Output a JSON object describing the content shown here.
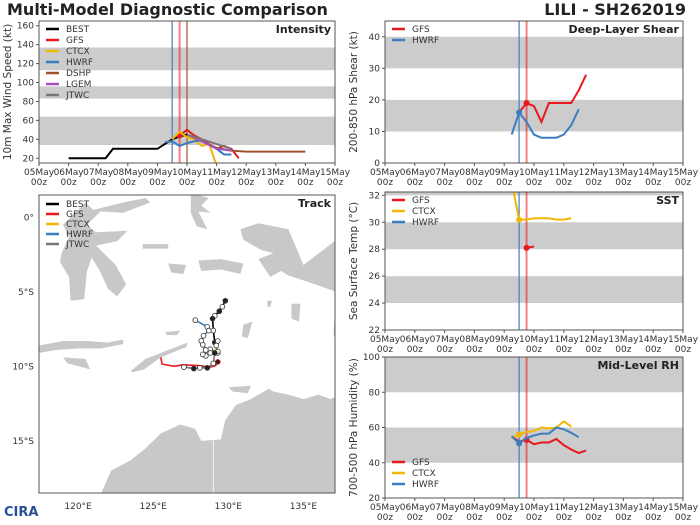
{
  "header": {
    "title": "Multi-Model Diagnostic Comparison",
    "storm": "LILI - SH262019"
  },
  "logo": "CIRA",
  "colors": {
    "BEST": "#000000",
    "GFS": "#e8191e",
    "CTCX": "#f2b705",
    "HWRF": "#3a7dc0",
    "DSHP": "#a0522d",
    "LGEM": "#a64fc4",
    "JTWC": "#777777",
    "band": "#cccccc",
    "land": "#c8c8c8"
  },
  "x_ticks": [
    {
      "date": "05May",
      "hour": "00z"
    },
    {
      "date": "06May",
      "hour": "00z"
    },
    {
      "date": "07May",
      "hour": "00z"
    },
    {
      "date": "08May",
      "hour": "00z"
    },
    {
      "date": "09May",
      "hour": "00z"
    },
    {
      "date": "10May",
      "hour": "00z"
    },
    {
      "date": "11May",
      "hour": "00z"
    },
    {
      "date": "12May",
      "hour": "00z"
    },
    {
      "date": "13May",
      "hour": "00z"
    },
    {
      "date": "14May",
      "hour": "00z"
    },
    {
      "date": "15May",
      "hour": "00z"
    }
  ],
  "chart_data": [
    {
      "type": "line",
      "title": "Intensity",
      "ylabel": "10m Max Wind Speed (kt)",
      "xlim": [
        "05May 00z",
        "15May 00z"
      ],
      "ylim": [
        15,
        165
      ],
      "yticks": [
        20,
        40,
        60,
        80,
        100,
        120,
        140,
        160
      ],
      "bands": [
        [
          34,
          64
        ],
        [
          83,
          96
        ],
        [
          113,
          137
        ]
      ],
      "legend": "top-left",
      "vlines": [
        {
          "x": "09May 12z",
          "model": "HWRF"
        },
        {
          "x": "09May 18z",
          "model": "GFS"
        },
        {
          "x": "10May 00z",
          "model": "DSHP"
        }
      ],
      "series": [
        {
          "name": "BEST",
          "x": [
            "06May 00z",
            "06May 12z",
            "07May 00z",
            "07May 06z",
            "07May 12z",
            "08May 00z",
            "08May 12z",
            "09May 00z",
            "09May 06z",
            "09May 12z",
            "09May 18z",
            "10May 00z"
          ],
          "y": [
            20,
            20,
            20,
            20,
            30,
            30,
            30,
            30,
            35,
            40,
            43,
            45
          ]
        },
        {
          "name": "GFS",
          "x": [
            "09May 18z",
            "10May 00z",
            "10May 06z",
            "10May 12z",
            "10May 18z",
            "11May 00z",
            "11May 06z",
            "11May 12z",
            "11May 18z"
          ],
          "y": [
            44,
            50,
            44,
            40,
            35,
            30,
            33,
            30,
            20
          ],
          "marker": "09May 18z"
        },
        {
          "name": "CTCX",
          "x": [
            "09May 12z",
            "09May 18z",
            "10May 00z",
            "10May 06z",
            "10May 12z",
            "10May 18z",
            "11May 00z"
          ],
          "y": [
            40,
            48,
            42,
            40,
            33,
            35,
            12
          ]
        },
        {
          "name": "HWRF",
          "x": [
            "09May 06z",
            "09May 12z",
            "09May 18z",
            "10May 00z",
            "10May 06z",
            "10May 12z",
            "10May 18z",
            "11May 00z",
            "11May 06z",
            "11May 12z"
          ],
          "y": [
            37,
            38,
            33,
            36,
            38,
            39,
            34,
            30,
            24,
            24
          ]
        },
        {
          "name": "DSHP",
          "x": [
            "10May 00z",
            "10May 12z",
            "11May 00z",
            "11May 12z",
            "12May 00z",
            "13May 00z",
            "14May 00z"
          ],
          "y": [
            45,
            38,
            31,
            28,
            27,
            27,
            27
          ]
        },
        {
          "name": "LGEM",
          "x": [
            "10May 00z",
            "10May 12z",
            "11May 00z",
            "11May 12z"
          ],
          "y": [
            45,
            38,
            30,
            28
          ]
        },
        {
          "name": "JTWC",
          "x": [
            "10May 00z",
            "10May 12z",
            "11May 00z",
            "11May 12z"
          ],
          "y": [
            45,
            40,
            35,
            30
          ]
        }
      ]
    },
    {
      "type": "line",
      "title": "Deep-Layer Shear",
      "ylabel": "200-850 hPa Shear (kt)",
      "xlim": [
        "05May 00z",
        "15May 00z"
      ],
      "ylim": [
        0,
        45
      ],
      "yticks": [
        0,
        10,
        20,
        30,
        40
      ],
      "bands": [
        [
          10,
          20
        ],
        [
          30,
          40
        ]
      ],
      "legend": "top-left",
      "vlines": [
        {
          "x": "09May 12z",
          "model": "HWRF"
        },
        {
          "x": "09May 18z",
          "model": "GFS"
        }
      ],
      "series": [
        {
          "name": "GFS",
          "x": [
            "09May 12z",
            "09May 18z",
            "10May 00z",
            "10May 06z",
            "10May 12z",
            "10May 18z",
            "11May 00z",
            "11May 06z",
            "11May 12z",
            "11May 18z"
          ],
          "y": [
            16,
            19,
            18,
            13,
            19,
            19,
            19,
            19,
            23,
            28
          ],
          "marker": "09May 18z"
        },
        {
          "name": "HWRF",
          "x": [
            "09May 06z",
            "09May 12z",
            "09May 18z",
            "10May 00z",
            "10May 06z",
            "10May 12z",
            "10May 18z",
            "11May 00z",
            "11May 06z",
            "11May 12z"
          ],
          "y": [
            9,
            16,
            13,
            9,
            8,
            8,
            8,
            9,
            12,
            17
          ],
          "marker": "09May 12z"
        }
      ]
    },
    {
      "type": "line",
      "title": "SST",
      "ylabel": "Sea Surface Temp (°C)",
      "xlim": [
        "05May 00z",
        "15May 00z"
      ],
      "ylim": [
        22,
        32.25
      ],
      "yticks": [
        22,
        24,
        26,
        28,
        30,
        32
      ],
      "bands": [
        [
          24,
          26
        ],
        [
          28,
          30
        ],
        [
          32,
          34
        ]
      ],
      "legend": "top-left",
      "vlines": [
        {
          "x": "09May 12z",
          "model": "HWRF"
        },
        {
          "x": "09May 18z",
          "model": "GFS"
        }
      ],
      "series": [
        {
          "name": "GFS",
          "x": [
            "09May 18z",
            "10May 00z"
          ],
          "y": [
            28.1,
            28.2
          ],
          "marker": "09May 18z"
        },
        {
          "name": "CTCX",
          "x": [
            "09May 06z",
            "09May 12z",
            "09May 18z",
            "10May 00z",
            "10May 06z",
            "10May 12z",
            "10May 18z",
            "11May 00z",
            "11May 06z"
          ],
          "y": [
            33,
            30.2,
            30.2,
            30.3,
            30.3,
            30.3,
            30.2,
            30.2,
            30.3
          ],
          "marker": "09May 12z"
        },
        {
          "name": "HWRF",
          "x": [],
          "y": []
        }
      ]
    },
    {
      "type": "line",
      "title": "Mid-Level RH",
      "ylabel": "700-500 hPa Humidity (%)",
      "xlim": [
        "05May 00z",
        "15May 00z"
      ],
      "ylim": [
        20,
        100
      ],
      "yticks": [
        20,
        40,
        60,
        80,
        100
      ],
      "bands": [
        [
          40,
          60
        ],
        [
          80,
          100
        ]
      ],
      "legend": "bottom-left",
      "vlines": [
        {
          "x": "09May 12z",
          "model": "HWRF"
        },
        {
          "x": "09May 18z",
          "model": "GFS"
        }
      ],
      "series": [
        {
          "name": "GFS",
          "x": [
            "09May 06z",
            "09May 12z",
            "09May 18z",
            "10May 00z",
            "10May 06z",
            "10May 12z",
            "10May 18z",
            "11May 00z",
            "11May 06z",
            "11May 12z",
            "11May 18z"
          ],
          "y": [
            55,
            52,
            53,
            50.5,
            51.5,
            51.5,
            53.5,
            50,
            47.5,
            45.5,
            47
          ],
          "marker": "09May 18z"
        },
        {
          "name": "CTCX",
          "x": [
            "09May 06z",
            "09May 12z",
            "09May 18z",
            "10May 00z",
            "10May 06z",
            "10May 12z",
            "10May 18z",
            "11May 00z",
            "11May 06z"
          ],
          "y": [
            54,
            56,
            57.5,
            58,
            60,
            59.5,
            60,
            63.5,
            60.5
          ],
          "marker": "09May 12z"
        },
        {
          "name": "HWRF",
          "x": [
            "09May 06z",
            "09May 12z",
            "09May 18z",
            "10May 00z",
            "10May 06z",
            "10May 12z",
            "10May 18z",
            "11May 00z",
            "11May 06z",
            "11May 12z"
          ],
          "y": [
            55,
            51,
            54,
            55.5,
            56.5,
            56.5,
            60,
            59,
            57,
            54.5
          ],
          "marker": "09May 12z"
        }
      ]
    },
    {
      "type": "map",
      "title": "Track",
      "legend": "top-left",
      "lon_range": [
        117.4,
        137.1
      ],
      "lat_range": [
        -18.5,
        1.5
      ],
      "lon_ticks": [
        {
          "v": 120,
          "label": "120°E"
        },
        {
          "v": 125,
          "label": "125°E"
        },
        {
          "v": 130,
          "label": "130°E"
        },
        {
          "v": 135,
          "label": "135°E"
        }
      ],
      "lat_ticks": [
        {
          "v": 0,
          "label": "0°"
        },
        {
          "v": -5,
          "label": "5°S"
        },
        {
          "v": -10,
          "label": "10°S"
        },
        {
          "v": -15,
          "label": "15°S"
        }
      ],
      "series": [
        {
          "name": "BEST",
          "points": [
            [
              129.8,
              -5.6
            ],
            [
              129.6,
              -6.0
            ],
            [
              129.4,
              -6.3
            ],
            [
              129.1,
              -6.6
            ],
            [
              128.95,
              -6.8
            ],
            [
              129.0,
              -7.6
            ],
            [
              129.1,
              -8.4
            ],
            [
              129.3,
              -9.1
            ]
          ]
        },
        {
          "name": "GFS",
          "points": [
            [
              129.3,
              -9.7
            ],
            [
              129.15,
              -9.95
            ],
            [
              128.8,
              -10.05
            ],
            [
              128.0,
              -9.95
            ],
            [
              127.0,
              -9.9
            ],
            [
              126.4,
              -10.0
            ],
            [
              125.6,
              -9.85
            ],
            [
              125.5,
              -9.4
            ]
          ]
        },
        {
          "name": "CTCX",
          "points": [
            [
              129.3,
              -8.3
            ],
            [
              129.2,
              -8.6
            ],
            [
              129.3,
              -9.0
            ],
            [
              128.8,
              -8.85
            ],
            [
              128.5,
              -9.3
            ],
            [
              128.3,
              -9.2
            ]
          ]
        },
        {
          "name": "HWRF",
          "points": [
            [
              127.8,
              -6.9
            ],
            [
              128.6,
              -7.35
            ],
            [
              128.7,
              -7.6
            ],
            [
              128.35,
              -7.95
            ],
            [
              128.2,
              -8.3
            ],
            [
              128.3,
              -8.55
            ],
            [
              128.5,
              -8.9
            ],
            [
              128.8,
              -9.1
            ]
          ]
        },
        {
          "name": "JTWC",
          "points": [
            [
              129.1,
              -9.1
            ],
            [
              129.0,
              -9.8
            ],
            [
              128.6,
              -10.1
            ],
            [
              128.1,
              -10.1
            ],
            [
              127.7,
              -10.15
            ],
            [
              127.05,
              -10.05
            ]
          ]
        }
      ]
    }
  ]
}
